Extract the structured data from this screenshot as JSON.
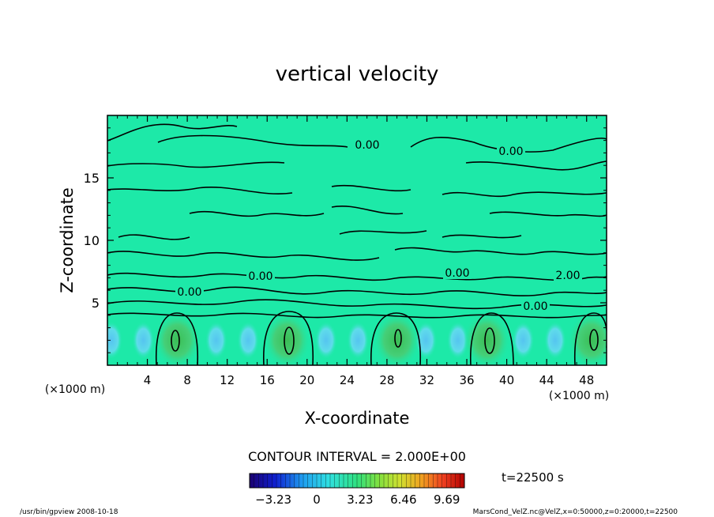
{
  "chart_data": {
    "type": "heatmap",
    "title": "vertical velocity",
    "xlabel": "X-coordinate",
    "ylabel": "Z-coordinate",
    "x_unit_left": "(×1000 m)",
    "x_unit_right": "(×1000 m)",
    "xlim": [
      0,
      50
    ],
    "ylim": [
      0,
      20
    ],
    "x_ticks": [
      "4",
      "8",
      "12",
      "16",
      "20",
      "24",
      "28",
      "32",
      "36",
      "40",
      "44",
      "48"
    ],
    "y_ticks": [
      "5",
      "10",
      "15"
    ],
    "contour_interval_label": "CONTOUR INTERVAL = 2.000E+00",
    "contour_labels": [
      "0.00",
      "0.00",
      "0.00",
      "0.00",
      "0.00",
      "2.00",
      "0.00"
    ],
    "colorbar_ticks": [
      "−3.23",
      "0",
      "3.23",
      "6.46",
      "9.69"
    ],
    "colorbar_range": [
      -5,
      11
    ],
    "updraft_centers_x": [
      7,
      18,
      29,
      38,
      48.5
    ],
    "time_label": "t=22500 s",
    "colors": {
      "background_field": "#1de9a8",
      "updraft": "#39c45a",
      "downdraft": "#55c8ee",
      "contour": "#000000"
    }
  },
  "footer": {
    "left": "/usr/bin/gpview  2008-10-18",
    "right": "MarsCond_VelZ.nc@VelZ,x=0:50000,z=0:20000,t=22500"
  }
}
